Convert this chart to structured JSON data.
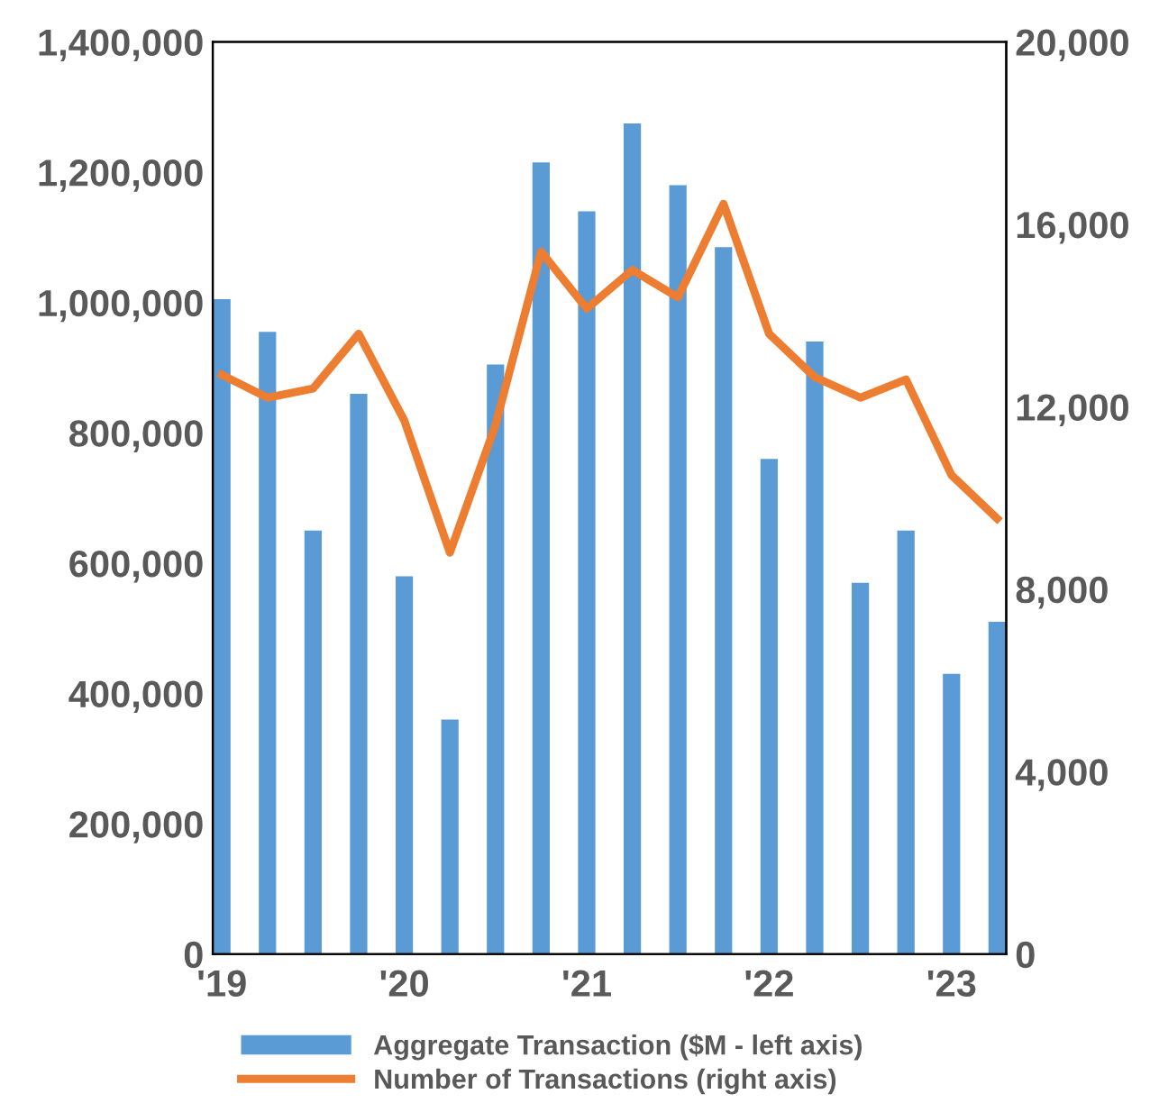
{
  "chart_data": {
    "type": "bar",
    "categories": [
      "'19",
      null,
      null,
      null,
      "'20",
      null,
      null,
      null,
      "'21",
      null,
      null,
      null,
      "'22",
      null,
      null,
      null,
      "'23",
      null
    ],
    "series": [
      {
        "name": "Aggregate Transaction ($M - left axis)",
        "color": "#5b9bd5",
        "values": [
          1005000,
          955000,
          650000,
          860000,
          580000,
          360000,
          905000,
          1215000,
          1140000,
          1275000,
          1180000,
          1085000,
          760000,
          940000,
          570000,
          650000,
          430000,
          510000
        ]
      },
      {
        "name": "Number of Transactions (right axis)",
        "type": "line",
        "axis": "y2",
        "color": "#ed7d31",
        "values": [
          12700,
          12200,
          12400,
          13600,
          11700,
          8800,
          11600,
          15400,
          14150,
          15000,
          14400,
          16450,
          13600,
          12650,
          12200,
          12600,
          10500,
          9550
        ]
      }
    ],
    "ylim": [
      0,
      1400000
    ],
    "yticks": [
      {
        "value": 0,
        "label": "0"
      },
      {
        "value": 200000,
        "label": "200,000"
      },
      {
        "value": 400000,
        "label": "400,000"
      },
      {
        "value": 600000,
        "label": "600,000"
      },
      {
        "value": 800000,
        "label": "800,000"
      },
      {
        "value": 1000000,
        "label": "1,000,000"
      },
      {
        "value": 1200000,
        "label": "1,200,000"
      },
      {
        "value": 1400000,
        "label": "1,400,000"
      }
    ],
    "y2lim": [
      0,
      20000
    ],
    "y2ticks": [
      {
        "value": 0,
        "label": "0"
      },
      {
        "value": 4000,
        "label": "4,000"
      },
      {
        "value": 8000,
        "label": "8,000"
      },
      {
        "value": 12000,
        "label": "12,000"
      },
      {
        "value": 16000,
        "label": "16,000"
      },
      {
        "value": 20000,
        "label": "20,000"
      }
    ],
    "grid": false,
    "legend": "bottom",
    "line_style": "solid",
    "marker": "none"
  }
}
